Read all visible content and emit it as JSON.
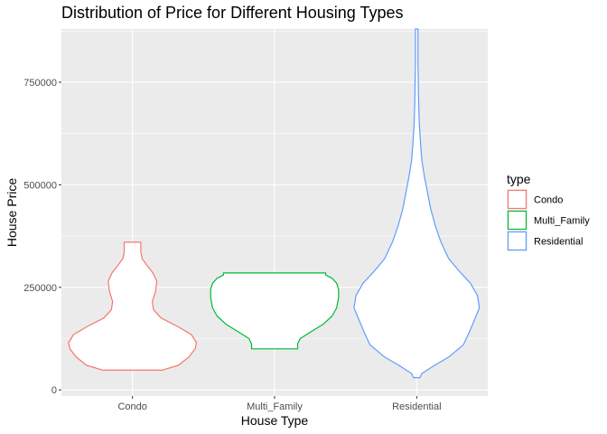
{
  "chart_data": {
    "type": "violin",
    "title": "Distribution of Price for Different Housing Types",
    "xlabel": "House Type",
    "ylabel": "House Price",
    "ylim": [
      -15000,
      880000
    ],
    "yticks": [
      {
        "value": 0,
        "label": "0"
      },
      {
        "value": 250000,
        "label": "250000"
      },
      {
        "value": 500000,
        "label": "500000"
      },
      {
        "value": 750000,
        "label": "750000"
      }
    ],
    "categories": [
      "Condo",
      "Multi_Family",
      "Residential"
    ],
    "legend": {
      "title": "type",
      "position": "right"
    },
    "grid": true,
    "series": [
      {
        "name": "Condo",
        "color": "#F8766D",
        "min": 48000,
        "max": 360000,
        "profile": [
          {
            "y": 48000,
            "w": 0.46
          },
          {
            "y": 60000,
            "w": 0.72
          },
          {
            "y": 80000,
            "w": 0.88
          },
          {
            "y": 100000,
            "w": 0.98
          },
          {
            "y": 115000,
            "w": 1.0
          },
          {
            "y": 135000,
            "w": 0.92
          },
          {
            "y": 155000,
            "w": 0.7
          },
          {
            "y": 175000,
            "w": 0.45
          },
          {
            "y": 195000,
            "w": 0.33
          },
          {
            "y": 215000,
            "w": 0.31
          },
          {
            "y": 240000,
            "w": 0.36
          },
          {
            "y": 265000,
            "w": 0.38
          },
          {
            "y": 285000,
            "w": 0.32
          },
          {
            "y": 305000,
            "w": 0.22
          },
          {
            "y": 320000,
            "w": 0.15
          },
          {
            "y": 335000,
            "w": 0.13
          },
          {
            "y": 350000,
            "w": 0.13
          },
          {
            "y": 360000,
            "w": 0.13
          }
        ]
      },
      {
        "name": "Multi_Family",
        "color": "#00BA38",
        "min": 100000,
        "max": 285000,
        "profile": [
          {
            "y": 100000,
            "w": 0.36
          },
          {
            "y": 112000,
            "w": 0.36
          },
          {
            "y": 125000,
            "w": 0.4
          },
          {
            "y": 140000,
            "w": 0.55
          },
          {
            "y": 160000,
            "w": 0.76
          },
          {
            "y": 180000,
            "w": 0.9
          },
          {
            "y": 200000,
            "w": 0.97
          },
          {
            "y": 225000,
            "w": 1.0
          },
          {
            "y": 245000,
            "w": 1.0
          },
          {
            "y": 260000,
            "w": 0.97
          },
          {
            "y": 272000,
            "w": 0.9
          },
          {
            "y": 280000,
            "w": 0.8
          },
          {
            "y": 285000,
            "w": 0.8
          }
        ]
      },
      {
        "name": "Residential",
        "color": "#619CFF",
        "min": 30000,
        "max": 880000,
        "profile": [
          {
            "y": 30000,
            "w": 0.05
          },
          {
            "y": 40000,
            "w": 0.08
          },
          {
            "y": 60000,
            "w": 0.28
          },
          {
            "y": 80000,
            "w": 0.5
          },
          {
            "y": 110000,
            "w": 0.73
          },
          {
            "y": 140000,
            "w": 0.82
          },
          {
            "y": 170000,
            "w": 0.9
          },
          {
            "y": 200000,
            "w": 0.98
          },
          {
            "y": 230000,
            "w": 0.95
          },
          {
            "y": 260000,
            "w": 0.84
          },
          {
            "y": 290000,
            "w": 0.66
          },
          {
            "y": 320000,
            "w": 0.5
          },
          {
            "y": 360000,
            "w": 0.38
          },
          {
            "y": 400000,
            "w": 0.29
          },
          {
            "y": 440000,
            "w": 0.22
          },
          {
            "y": 480000,
            "w": 0.17
          },
          {
            "y": 520000,
            "w": 0.12
          },
          {
            "y": 560000,
            "w": 0.08
          },
          {
            "y": 600000,
            "w": 0.06
          },
          {
            "y": 650000,
            "w": 0.04
          },
          {
            "y": 700000,
            "w": 0.03
          },
          {
            "y": 800000,
            "w": 0.02
          },
          {
            "y": 880000,
            "w": 0.02
          }
        ]
      }
    ]
  }
}
